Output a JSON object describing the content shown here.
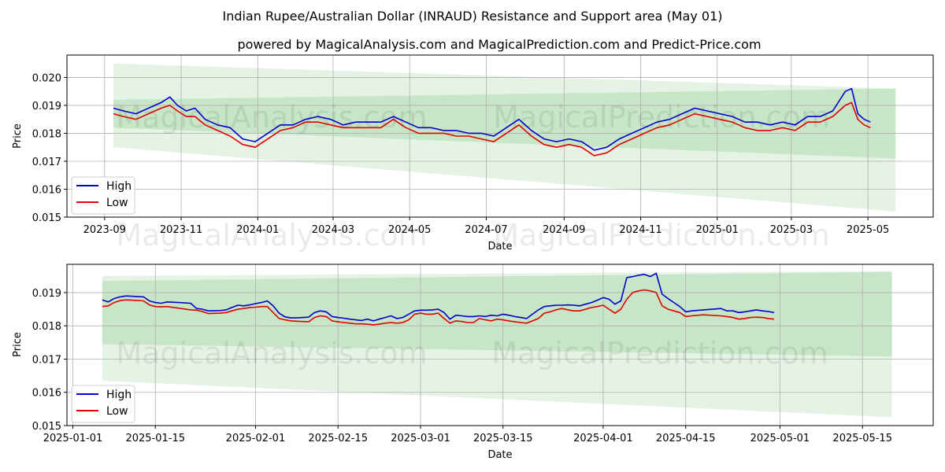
{
  "title_line1": "Indian Rupee/Australian Dollar (INRAUD) Resistance and Support area (May 01)",
  "title_line2": "powered by MagicalAnalysis.com and MagicalPrediction.com and Predict-Price.com",
  "watermarks": [
    "MagicalAnalysis.com",
    "MagicalPrediction.com"
  ],
  "colors": {
    "high": "#0000cc",
    "low": "#e00000",
    "band": "#2ca02c"
  },
  "chart_data": [
    {
      "type": "line",
      "xlabel": "Date",
      "ylabel": "Price",
      "grid": true,
      "legend": "lower-left",
      "x_ticks": [
        "2023-09",
        "2023-11",
        "2024-01",
        "2024-03",
        "2024-05",
        "2024-07",
        "2024-09",
        "2024-11",
        "2025-01",
        "2025-03",
        "2025-05"
      ],
      "x_tick_days": [
        0,
        61,
        122,
        182,
        243,
        304,
        366,
        427,
        488,
        547,
        608
      ],
      "xlim_days": [
        -30,
        660
      ],
      "ylim": [
        0.015,
        0.0208
      ],
      "y_ticks": [
        0.015,
        0.016,
        0.017,
        0.018,
        0.019,
        0.02
      ],
      "y_tick_labels": [
        "0.015",
        "0.016",
        "0.017",
        "0.018",
        "0.019",
        "0.020"
      ],
      "band_outer": {
        "x0": 7,
        "x1": 630,
        "top": [
          0.0205,
          0.0196
        ],
        "bottom": [
          0.0175,
          0.0152
        ]
      },
      "band_inner": {
        "x0": 7,
        "x1": 630,
        "top": [
          0.0192,
          0.0196
        ],
        "bottom": [
          0.0182,
          0.0171
        ]
      },
      "series": [
        {
          "name": "High",
          "x": [
            7,
            15,
            25,
            35,
            45,
            52,
            58,
            65,
            72,
            80,
            90,
            100,
            110,
            120,
            130,
            140,
            150,
            160,
            170,
            180,
            190,
            200,
            210,
            220,
            230,
            240,
            250,
            260,
            270,
            280,
            290,
            300,
            310,
            320,
            330,
            340,
            350,
            360,
            370,
            380,
            390,
            400,
            410,
            420,
            430,
            440,
            450,
            460,
            470,
            480,
            490,
            500,
            510,
            520,
            530,
            540,
            550,
            560,
            570,
            580,
            590,
            595,
            600,
            605,
            610
          ],
          "values": [
            0.0189,
            0.0188,
            0.0187,
            0.0189,
            0.0191,
            0.0193,
            0.019,
            0.0188,
            0.0189,
            0.0185,
            0.0183,
            0.0182,
            0.0178,
            0.0177,
            0.018,
            0.0183,
            0.0183,
            0.0185,
            0.0186,
            0.0185,
            0.0183,
            0.0184,
            0.0184,
            0.0184,
            0.0186,
            0.0184,
            0.0182,
            0.0182,
            0.0181,
            0.0181,
            0.018,
            0.018,
            0.0179,
            0.0182,
            0.0185,
            0.0181,
            0.0178,
            0.0177,
            0.0178,
            0.0177,
            0.0174,
            0.0175,
            0.0178,
            0.018,
            0.0182,
            0.0184,
            0.0185,
            0.0187,
            0.0189,
            0.0188,
            0.0187,
            0.0186,
            0.0184,
            0.0184,
            0.0183,
            0.0184,
            0.0183,
            0.0186,
            0.0186,
            0.0188,
            0.0195,
            0.0196,
            0.0187,
            0.0185,
            0.0184
          ]
        },
        {
          "name": "Low",
          "x": [
            7,
            15,
            25,
            35,
            45,
            52,
            58,
            65,
            72,
            80,
            90,
            100,
            110,
            120,
            130,
            140,
            150,
            160,
            170,
            180,
            190,
            200,
            210,
            220,
            230,
            240,
            250,
            260,
            270,
            280,
            290,
            300,
            310,
            320,
            330,
            340,
            350,
            360,
            370,
            380,
            390,
            400,
            410,
            420,
            430,
            440,
            450,
            460,
            470,
            480,
            490,
            500,
            510,
            520,
            530,
            540,
            550,
            560,
            570,
            580,
            590,
            595,
            600,
            605,
            610
          ],
          "values": [
            0.0187,
            0.0186,
            0.0185,
            0.0187,
            0.0189,
            0.019,
            0.0188,
            0.0186,
            0.0186,
            0.0183,
            0.0181,
            0.0179,
            0.0176,
            0.0175,
            0.0178,
            0.0181,
            0.0182,
            0.0184,
            0.0184,
            0.0183,
            0.0182,
            0.0182,
            0.0182,
            0.0182,
            0.0185,
            0.0182,
            0.018,
            0.018,
            0.018,
            0.0179,
            0.0179,
            0.0178,
            0.0177,
            0.018,
            0.0183,
            0.0179,
            0.0176,
            0.0175,
            0.0176,
            0.0175,
            0.0172,
            0.0173,
            0.0176,
            0.0178,
            0.018,
            0.0182,
            0.0183,
            0.0185,
            0.0187,
            0.0186,
            0.0185,
            0.0184,
            0.0182,
            0.0181,
            0.0181,
            0.0182,
            0.0181,
            0.0184,
            0.0184,
            0.0186,
            0.019,
            0.0191,
            0.0185,
            0.0183,
            0.0182
          ]
        }
      ]
    },
    {
      "type": "line",
      "xlabel": "Date",
      "ylabel": "Price",
      "grid": true,
      "legend": "lower-left",
      "x_ticks": [
        "2025-01-01",
        "2025-01-15",
        "2025-02-01",
        "2025-02-15",
        "2025-03-01",
        "2025-03-15",
        "2025-04-01",
        "2025-04-15",
        "2025-05-01",
        "2025-05-15"
      ],
      "x_tick_days": [
        0,
        14,
        31,
        45,
        59,
        73,
        90,
        104,
        120,
        134
      ],
      "xlim_days": [
        -1,
        146
      ],
      "ylim": [
        0.015,
        0.01985
      ],
      "y_ticks": [
        0.015,
        0.016,
        0.017,
        0.018,
        0.019
      ],
      "y_tick_labels": [
        "0.015",
        "0.016",
        "0.017",
        "0.018",
        "0.019"
      ],
      "band_outer": {
        "x0": 5,
        "x1": 139,
        "top": [
          0.0195,
          0.01965
        ],
        "bottom": [
          0.01635,
          0.01525
        ]
      },
      "band_inner": {
        "x0": 5,
        "x1": 139,
        "top": [
          0.01935,
          0.01962
        ],
        "bottom": [
          0.01745,
          0.01708
        ]
      },
      "series": [
        {
          "name": "High",
          "x": [
            5,
            6,
            7,
            8,
            9,
            10,
            12,
            13,
            14,
            15,
            16,
            18,
            20,
            21,
            22,
            23,
            25,
            26,
            27,
            28,
            29,
            30,
            31,
            32,
            33,
            34,
            35,
            36,
            37,
            38,
            39,
            40,
            41,
            42,
            43,
            44,
            45,
            46,
            47,
            48,
            49,
            50,
            51,
            52,
            53,
            54,
            55,
            56,
            57,
            58,
            59,
            60,
            61,
            62,
            63,
            64,
            65,
            66,
            67,
            68,
            69,
            70,
            71,
            72,
            73,
            74,
            75,
            76,
            77,
            78,
            79,
            80,
            81,
            82,
            83,
            84,
            85,
            86,
            87,
            88,
            89,
            90,
            91,
            92,
            93,
            94,
            95,
            96,
            97,
            98,
            99,
            100,
            101,
            102,
            103,
            104,
            105,
            107,
            110,
            111,
            112,
            113,
            114,
            115,
            116,
            117,
            118,
            119
          ],
          "values": [
            0.01878,
            0.01872,
            0.01882,
            0.01887,
            0.0189,
            0.01889,
            0.01887,
            0.01875,
            0.0187,
            0.01868,
            0.01872,
            0.0187,
            0.01868,
            0.01852,
            0.0185,
            0.01845,
            0.01846,
            0.01848,
            0.01855,
            0.01862,
            0.0186,
            0.01863,
            0.01867,
            0.0187,
            0.01875,
            0.0186,
            0.01838,
            0.01827,
            0.01824,
            0.01824,
            0.01825,
            0.01826,
            0.0184,
            0.01845,
            0.01842,
            0.01828,
            0.01825,
            0.01823,
            0.0182,
            0.01818,
            0.01816,
            0.0182,
            0.01815,
            0.0182,
            0.01825,
            0.0183,
            0.01822,
            0.01825,
            0.01835,
            0.01845,
            0.01847,
            0.01847,
            0.01848,
            0.0185,
            0.0184,
            0.0182,
            0.01832,
            0.0183,
            0.01828,
            0.01828,
            0.0183,
            0.01828,
            0.01832,
            0.0183,
            0.01835,
            0.01832,
            0.01828,
            0.01825,
            0.01822,
            0.01835,
            0.01848,
            0.01858,
            0.0186,
            0.01862,
            0.01862,
            0.01863,
            0.01862,
            0.0186,
            0.01865,
            0.0187,
            0.01877,
            0.01885,
            0.0188,
            0.01865,
            0.01875,
            0.01945,
            0.01948,
            0.01952,
            0.01955,
            0.01948,
            0.01958,
            0.01895,
            0.01882,
            0.0187,
            0.01858,
            0.01842,
            0.01845,
            0.01848,
            0.01852,
            0.01845,
            0.01845,
            0.0184,
            0.01842,
            0.01845,
            0.01848,
            0.01845,
            0.01843,
            0.0184
          ]
        },
        {
          "name": "Low",
          "x": [
            5,
            6,
            7,
            8,
            9,
            10,
            12,
            13,
            14,
            15,
            16,
            18,
            20,
            21,
            22,
            23,
            25,
            26,
            27,
            28,
            29,
            30,
            31,
            32,
            33,
            34,
            35,
            36,
            37,
            38,
            39,
            40,
            41,
            42,
            43,
            44,
            45,
            46,
            47,
            48,
            49,
            50,
            51,
            52,
            53,
            54,
            55,
            56,
            57,
            58,
            59,
            60,
            61,
            62,
            63,
            64,
            65,
            66,
            67,
            68,
            69,
            70,
            71,
            72,
            73,
            74,
            75,
            76,
            77,
            78,
            79,
            80,
            81,
            82,
            83,
            84,
            85,
            86,
            87,
            88,
            89,
            90,
            91,
            92,
            93,
            94,
            95,
            96,
            97,
            98,
            99,
            100,
            101,
            102,
            103,
            104,
            105,
            107,
            110,
            111,
            112,
            113,
            114,
            115,
            116,
            117,
            118,
            119
          ],
          "values": [
            0.01858,
            0.0186,
            0.0187,
            0.01876,
            0.01878,
            0.01877,
            0.01875,
            0.01863,
            0.01858,
            0.01857,
            0.01858,
            0.01853,
            0.01848,
            0.01847,
            0.01843,
            0.01837,
            0.01838,
            0.0184,
            0.01845,
            0.0185,
            0.01852,
            0.01855,
            0.01856,
            0.01858,
            0.01858,
            0.0184,
            0.01822,
            0.01818,
            0.01815,
            0.01814,
            0.01813,
            0.01812,
            0.01825,
            0.0183,
            0.01828,
            0.01815,
            0.01812,
            0.0181,
            0.01808,
            0.01806,
            0.01806,
            0.01805,
            0.01803,
            0.01805,
            0.01808,
            0.0181,
            0.01808,
            0.0181,
            0.01818,
            0.01835,
            0.01838,
            0.01835,
            0.01835,
            0.01838,
            0.01822,
            0.01808,
            0.01815,
            0.01813,
            0.0181,
            0.0181,
            0.01822,
            0.01818,
            0.01815,
            0.0182,
            0.01818,
            0.01815,
            0.01812,
            0.0181,
            0.01808,
            0.01815,
            0.01822,
            0.01838,
            0.01842,
            0.01848,
            0.01852,
            0.01848,
            0.01845,
            0.01845,
            0.0185,
            0.01855,
            0.01858,
            0.01862,
            0.0185,
            0.01838,
            0.0185,
            0.0188,
            0.019,
            0.01905,
            0.01908,
            0.01905,
            0.019,
            0.0186,
            0.0185,
            0.01845,
            0.0184,
            0.01828,
            0.0183,
            0.01833,
            0.0183,
            0.01828,
            0.01825,
            0.0182,
            0.01822,
            0.01825,
            0.01826,
            0.01825,
            0.01822,
            0.0182
          ]
        }
      ]
    }
  ]
}
